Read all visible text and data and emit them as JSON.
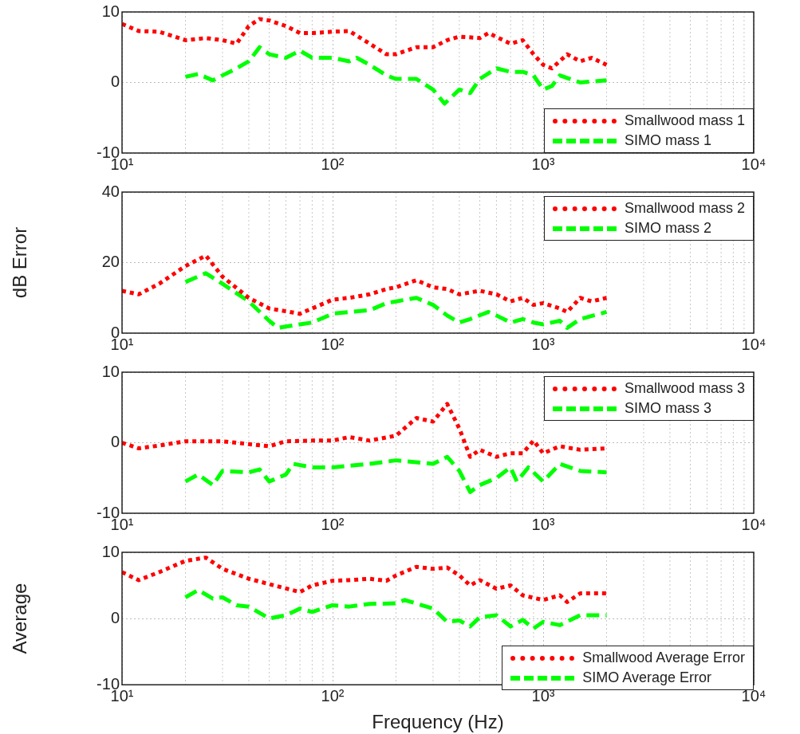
{
  "chart_data": [
    {
      "type": "line",
      "log": "x",
      "grid": true,
      "legend": "bottom right",
      "xlim": [
        10,
        10000
      ],
      "xticks": [
        {
          "value": 10,
          "label": "10¹"
        },
        {
          "value": 100,
          "label": "10²"
        },
        {
          "value": 1000,
          "label": "10³"
        },
        {
          "value": 10000,
          "label": "10⁴"
        }
      ],
      "ylim": [
        -10,
        10
      ],
      "yticks": [
        -10,
        0,
        10
      ],
      "series": [
        {
          "name": "Smallwood mass 1",
          "color": "#ff0000",
          "line_style": "dotted",
          "x": [
            10,
            12,
            15,
            20,
            25,
            30,
            35,
            40,
            45,
            50,
            60,
            70,
            80,
            100,
            120,
            150,
            180,
            200,
            250,
            300,
            350,
            400,
            500,
            550,
            700,
            800,
            900,
            1000,
            1100,
            1300,
            1500,
            1700,
            2000
          ],
          "values": [
            8.3,
            7.3,
            7.2,
            6,
            6.3,
            6,
            5.5,
            8,
            9,
            8.8,
            8,
            7,
            7,
            7.2,
            7.3,
            5.5,
            4,
            4,
            5,
            5,
            6,
            6.5,
            6.3,
            7,
            5.5,
            6,
            4,
            2.5,
            2,
            4,
            3,
            3.5,
            2.5
          ]
        },
        {
          "name": "SIMO mass 1",
          "color": "#00ff00",
          "line_style": "dashed",
          "x": [
            20,
            23,
            27,
            30,
            35,
            40,
            45,
            50,
            60,
            70,
            80,
            90,
            100,
            120,
            130,
            150,
            180,
            200,
            250,
            300,
            340,
            400,
            450,
            500,
            600,
            700,
            800,
            900,
            1000,
            1100,
            1200,
            1500,
            2000
          ],
          "values": [
            0.8,
            1.2,
            0.3,
            1,
            2,
            3,
            5,
            4,
            3.5,
            4.5,
            3.5,
            3.5,
            3.5,
            3,
            3.5,
            2.5,
            1,
            0.5,
            0.5,
            -1,
            -3,
            -1,
            -1.5,
            0.5,
            2,
            1.5,
            1.5,
            1,
            -1,
            -0.5,
            1,
            0,
            0.3
          ]
        }
      ]
    },
    {
      "type": "line",
      "log": "x",
      "grid": true,
      "legend": "top right",
      "ylabel": "dB Error",
      "xlim": [
        10,
        10000
      ],
      "xticks": [
        {
          "value": 10,
          "label": "10¹"
        },
        {
          "value": 100,
          "label": "10²"
        },
        {
          "value": 1000,
          "label": "10³"
        },
        {
          "value": 10000,
          "label": "10⁴"
        }
      ],
      "ylim": [
        0,
        40
      ],
      "yticks": [
        0,
        20,
        40
      ],
      "series": [
        {
          "name": "Smallwood mass 2",
          "color": "#ff0000",
          "line_style": "dotted",
          "x": [
            10,
            12,
            15,
            20,
            25,
            30,
            40,
            50,
            70,
            80,
            100,
            120,
            150,
            180,
            200,
            250,
            300,
            350,
            400,
            500,
            600,
            700,
            800,
            900,
            1000,
            1200,
            1300,
            1500,
            1700,
            2000
          ],
          "values": [
            12,
            11,
            14,
            19,
            22,
            16,
            10,
            7,
            5.5,
            7,
            9.5,
            10,
            11,
            12.5,
            13,
            15,
            13,
            12.5,
            11,
            12,
            11,
            9,
            10,
            8,
            8.5,
            7,
            6,
            10,
            9,
            10
          ]
        },
        {
          "name": "SIMO mass 2",
          "color": "#00ff00",
          "line_style": "dashed",
          "x": [
            20,
            25,
            30,
            40,
            50,
            55,
            70,
            80,
            100,
            120,
            150,
            180,
            200,
            250,
            300,
            350,
            400,
            450,
            550,
            600,
            700,
            800,
            900,
            1000,
            1200,
            1300,
            1500,
            2000
          ],
          "values": [
            14.5,
            17,
            14,
            9,
            3.5,
            1.5,
            2.5,
            3,
            5.5,
            6,
            6.5,
            8.5,
            9,
            10,
            8,
            5,
            3,
            4,
            6,
            5,
            3,
            4,
            3,
            2.5,
            3.5,
            1.5,
            4,
            6
          ]
        }
      ]
    },
    {
      "type": "line",
      "log": "x",
      "grid": true,
      "legend": "top right",
      "xlim": [
        10,
        10000
      ],
      "xticks": [
        {
          "value": 10,
          "label": "10¹"
        },
        {
          "value": 100,
          "label": "10²"
        },
        {
          "value": 1000,
          "label": "10³"
        },
        {
          "value": 10000,
          "label": "10⁴"
        }
      ],
      "ylim": [
        -10,
        10
      ],
      "yticks": [
        -10,
        0,
        10
      ],
      "series": [
        {
          "name": "Smallwood mass 3",
          "color": "#ff0000",
          "line_style": "dotted",
          "x": [
            10,
            12,
            15,
            20,
            30,
            40,
            50,
            60,
            80,
            100,
            120,
            150,
            200,
            250,
            300,
            350,
            400,
            450,
            500,
            600,
            700,
            800,
            900,
            1000,
            1200,
            1500,
            2000
          ],
          "values": [
            0,
            -0.8,
            -0.4,
            0.2,
            0.2,
            -0.2,
            -0.5,
            0.2,
            0.3,
            0.3,
            0.8,
            0.3,
            1,
            3.5,
            3,
            5.5,
            2,
            -2,
            -1,
            -2,
            -1.5,
            -1.5,
            0.3,
            -1.5,
            -0.5,
            -1,
            -0.8
          ]
        },
        {
          "name": "SIMO mass 3",
          "color": "#00ff00",
          "line_style": "dashed",
          "x": [
            20,
            23,
            27,
            30,
            40,
            45,
            50,
            60,
            65,
            80,
            100,
            150,
            200,
            300,
            350,
            400,
            450,
            500,
            600,
            700,
            750,
            850,
            1000,
            1200,
            1500,
            2000
          ],
          "values": [
            -5.5,
            -4.5,
            -6,
            -4,
            -4.2,
            -3.8,
            -5.5,
            -4.5,
            -3,
            -3.5,
            -3.5,
            -3,
            -2.5,
            -3,
            -2,
            -4,
            -7,
            -6,
            -5,
            -3.5,
            -5.5,
            -3.5,
            -5.5,
            -3,
            -4,
            -4.2
          ]
        }
      ]
    },
    {
      "type": "line",
      "log": "x",
      "grid": true,
      "legend": "bottom right",
      "ylabel": "Average",
      "xlabel": "Frequency (Hz)",
      "xlim": [
        10,
        10000
      ],
      "xticks": [
        {
          "value": 10,
          "label": "10¹"
        },
        {
          "value": 100,
          "label": "10²"
        },
        {
          "value": 1000,
          "label": "10³"
        },
        {
          "value": 10000,
          "label": "10⁴"
        }
      ],
      "ylim": [
        -10,
        10
      ],
      "yticks": [
        -10,
        0,
        10
      ],
      "series": [
        {
          "name": "Smallwood Average Error",
          "color": "#ff0000",
          "line_style": "dotted",
          "x": [
            10,
            12,
            15,
            20,
            25,
            30,
            40,
            50,
            70,
            80,
            100,
            120,
            150,
            180,
            200,
            250,
            300,
            350,
            400,
            450,
            500,
            600,
            700,
            800,
            1000,
            1200,
            1300,
            1500,
            2000
          ],
          "values": [
            7,
            5.8,
            7,
            8.7,
            9.2,
            7.5,
            6,
            5.2,
            4,
            5,
            5.7,
            5.8,
            6,
            5.7,
            6.5,
            7.8,
            7.5,
            7.7,
            6.5,
            5,
            5.8,
            4.5,
            5,
            3.5,
            2.8,
            3.5,
            2.5,
            3.8,
            3.8
          ]
        },
        {
          "name": "SIMO Average Error",
          "color": "#00ff00",
          "line_style": "dashed",
          "x": [
            20,
            23,
            27,
            30,
            35,
            40,
            50,
            60,
            70,
            80,
            100,
            120,
            150,
            200,
            220,
            300,
            350,
            400,
            450,
            500,
            600,
            700,
            800,
            900,
            1000,
            1200,
            1500,
            2000
          ],
          "values": [
            3.2,
            4.3,
            3,
            3.2,
            2,
            1.8,
            0,
            0.5,
            1.5,
            1,
            2,
            1.8,
            2.2,
            2.3,
            2.8,
            1.5,
            -0.5,
            -0.3,
            -1.2,
            0.2,
            0.5,
            -1.2,
            -0.2,
            -1.5,
            -0.5,
            -1,
            0.5,
            0.5
          ]
        }
      ]
    }
  ]
}
